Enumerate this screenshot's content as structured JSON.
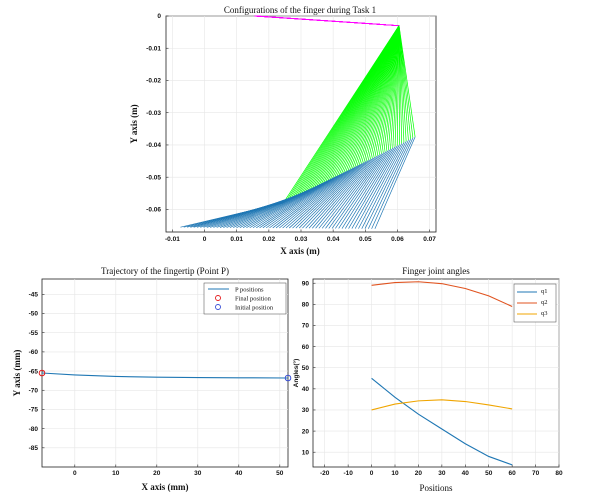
{
  "chart_data": [
    {
      "type": "line",
      "title": "Configurations of the finger during Task 1",
      "xlabel": "X axis (m)",
      "ylabel": "Y axis (m)",
      "xlim": [
        -0.012,
        0.072
      ],
      "ylim": [
        -0.067,
        0.0
      ],
      "xticks": [
        "-0.01",
        "0",
        "0.01",
        "0.02",
        "0.03",
        "0.04",
        "0.05",
        "0.06",
        "0.07"
      ],
      "yticks": [
        "0",
        "-0.01",
        "-0.02",
        "-0.03",
        "-0.04",
        "-0.05",
        "-0.06"
      ],
      "colors": {
        "link1": "#ff00ff",
        "link2": "#00ff00",
        "link3": "#1f77b4"
      },
      "n_configurations": 60,
      "link1_base": [
        0.016,
        0.0
      ],
      "joint2_start": [
        0.0605,
        -0.003
      ],
      "joint2_end": [
        0.0605,
        -0.003
      ],
      "joint3_start": [
        0.0605,
        -0.003
      ],
      "joint3_end": [
        0.0655,
        -0.0375
      ],
      "tip_start": [
        0.0245,
        -0.058
      ],
      "tip_end": [
        0.053,
        -0.066
      ],
      "link3_tip_start": [
        -0.0075,
        -0.0655
      ],
      "link3_tip_end": [
        0.053,
        -0.066
      ],
      "joint2_path_start": [
        0.0605,
        -0.003
      ],
      "joint2_path_end": [
        0.0655,
        -0.0375
      ],
      "grid": true
    },
    {
      "type": "line",
      "title": "Trajectory of the fingertip (Point P)",
      "xlabel": "X axis (mm)",
      "ylabel": "Y axis (mm)",
      "xlim": [
        -8,
        52
      ],
      "ylim": [
        -90,
        -41
      ],
      "xticks": [
        "0",
        "10",
        "20",
        "30",
        "40",
        "50"
      ],
      "yticks": [
        "-45",
        "-50",
        "-55",
        "-60",
        "-65",
        "-70",
        "-75",
        "-80",
        "-85"
      ],
      "legend_position": "top-right",
      "legend": [
        "P positions",
        "Final position",
        "Initial position"
      ],
      "series": [
        {
          "name": "P positions",
          "color": "#1f77b4",
          "x": [
            -8,
            0,
            10,
            20,
            30,
            40,
            52
          ],
          "y": [
            -65.5,
            -66.0,
            -66.4,
            -66.6,
            -66.7,
            -66.75,
            -66.8
          ]
        }
      ],
      "markers": {
        "final": {
          "x": -8,
          "y": -65.5,
          "color": "#e41a1c"
        },
        "initial": {
          "x": 52,
          "y": -66.8,
          "color": "#3a4fd6"
        }
      },
      "grid": true
    },
    {
      "type": "line",
      "title": "Finger joint angles",
      "xlabel": "Positions",
      "ylabel": "Angles(°)",
      "xlim": [
        -25,
        80
      ],
      "ylim": [
        3,
        92
      ],
      "xticks": [
        "-20",
        "-10",
        "0",
        "10",
        "20",
        "30",
        "40",
        "50",
        "60",
        "70",
        "80"
      ],
      "yticks": [
        "10",
        "20",
        "30",
        "40",
        "50",
        "60",
        "70",
        "80",
        "90"
      ],
      "legend_position": "top-right",
      "legend": [
        "q1",
        "q2",
        "q3"
      ],
      "series": [
        {
          "name": "q1",
          "color": "#1f77b4",
          "x": [
            0,
            10,
            20,
            30,
            40,
            50,
            60
          ],
          "y": [
            45,
            36,
            28,
            21,
            14,
            8,
            4
          ]
        },
        {
          "name": "q2",
          "color": "#e0531f",
          "x": [
            0,
            10,
            20,
            30,
            40,
            50,
            60
          ],
          "y": [
            89,
            90.3,
            90.7,
            89.8,
            87.5,
            84,
            79
          ]
        },
        {
          "name": "q3",
          "color": "#f0a500",
          "x": [
            0,
            10,
            20,
            30,
            40,
            50,
            60
          ],
          "y": [
            30,
            32.8,
            34.3,
            34.8,
            34,
            32.4,
            30.5
          ]
        }
      ],
      "grid": true
    }
  ]
}
